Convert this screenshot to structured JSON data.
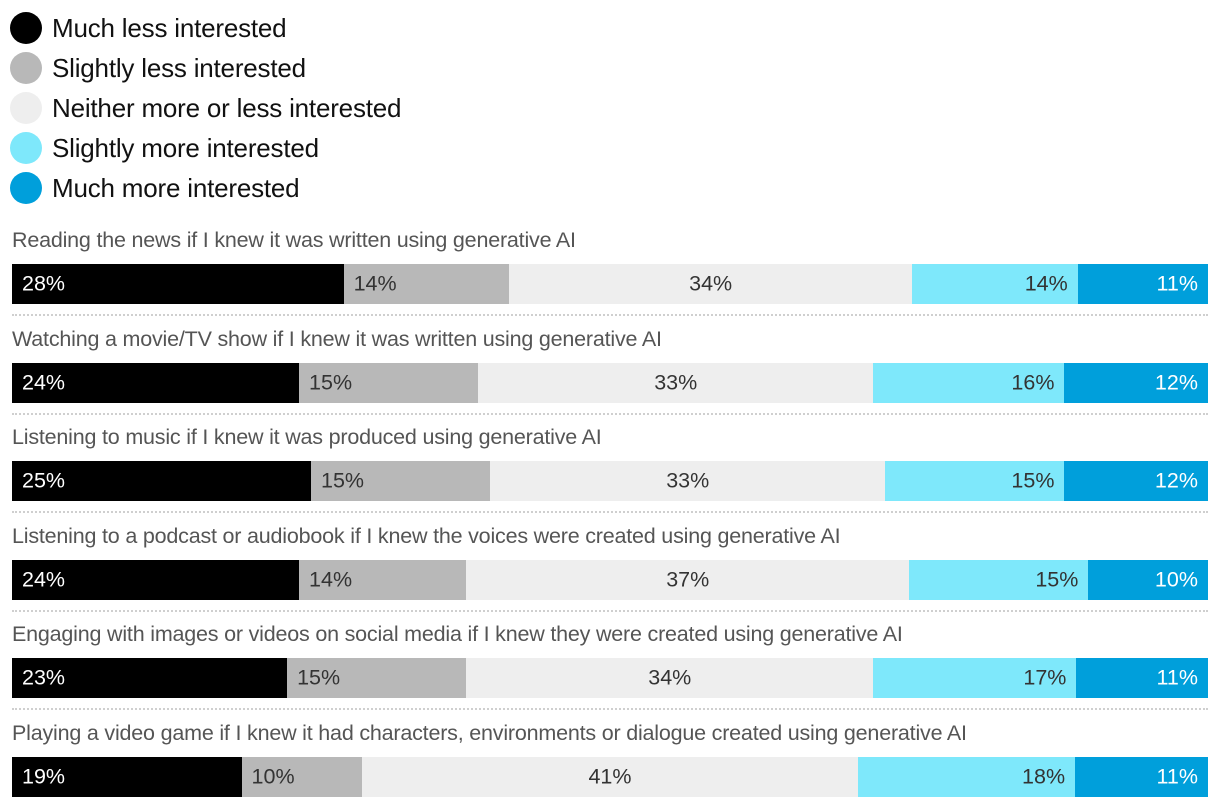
{
  "colors": {
    "Much less interested": "#000000",
    "Slightly less interested": "#b8b8b8",
    "Neither more or less interested": "#eeeeee",
    "Slightly more interested": "#7ee8fb",
    "Much more interested": "#009fdb"
  },
  "chart_data": {
    "type": "bar",
    "orientation": "horizontal",
    "stacked": true,
    "legend_position": "top-left",
    "title": "",
    "categories": [
      "Reading the news if I knew it was written using generative AI",
      "Watching a movie/TV show if I knew it was written using generative AI",
      "Listening to music if I knew it was produced using generative AI",
      "Listening to a podcast or audiobook if I knew the voices were created using generative AI",
      "Engaging with images or videos on social media if I knew they were created using generative AI",
      "Playing a video game if I knew it had characters, environments or dialogue created using generative AI"
    ],
    "series": [
      {
        "name": "Much less interested",
        "values": [
          28,
          24,
          25,
          24,
          23,
          19
        ]
      },
      {
        "name": "Slightly less interested",
        "values": [
          14,
          15,
          15,
          14,
          15,
          10
        ]
      },
      {
        "name": "Neither more or less interested",
        "values": [
          34,
          33,
          33,
          37,
          34,
          41
        ]
      },
      {
        "name": "Slightly more interested",
        "values": [
          14,
          16,
          15,
          15,
          17,
          18
        ]
      },
      {
        "name": "Much more interested",
        "values": [
          11,
          12,
          12,
          10,
          11,
          11
        ]
      }
    ],
    "value_suffix": "%"
  }
}
